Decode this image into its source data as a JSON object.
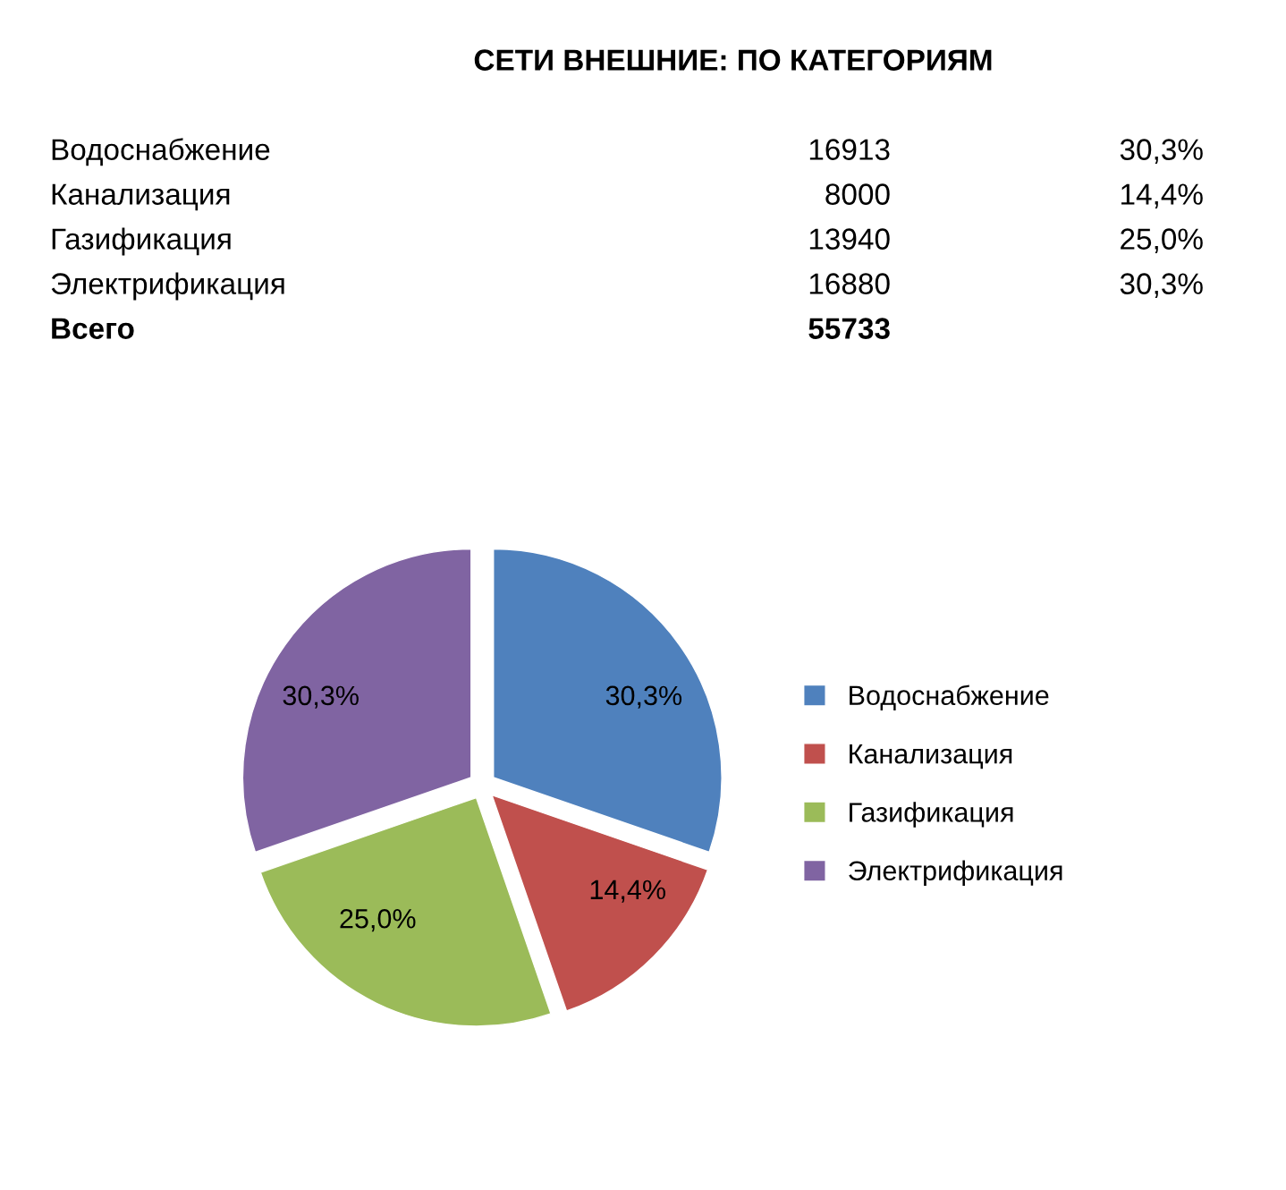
{
  "chart_data": {
    "type": "pie",
    "title": "СЕТИ ВНЕШНИЕ: ПО КАТЕГОРИЯМ",
    "categories": [
      "Водоснабжение",
      "Канализация",
      "Газификация",
      "Электрификация"
    ],
    "values": [
      30.3,
      14.4,
      25.0,
      30.3
    ],
    "value_labels": [
      "30,3%",
      "14,4%",
      "25,0%",
      "30,3%"
    ],
    "colors": [
      "#4f81bd",
      "#c0504d",
      "#9bbb59",
      "#8064a2"
    ],
    "annotations": [
      "16913",
      "8000",
      "13940",
      "16880",
      "Всего",
      "55733"
    ],
    "legend": "right"
  }
}
